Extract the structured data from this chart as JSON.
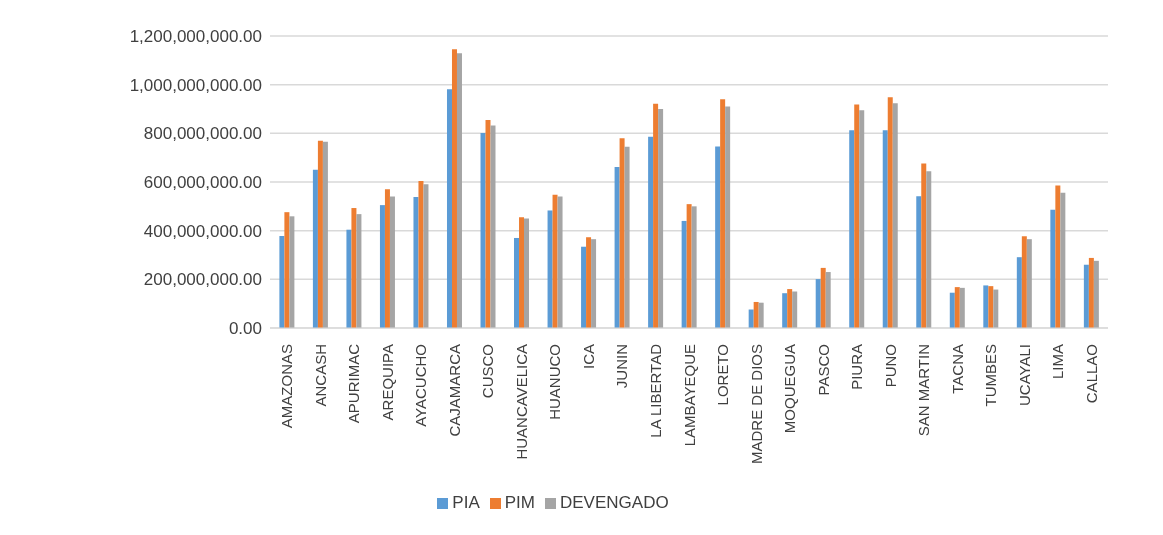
{
  "chart_data": {
    "type": "bar",
    "categories": [
      "AMAZONAS",
      "ANCASH",
      "APURIMAC",
      "AREQUIPA",
      "AYACUCHO",
      "CAJAMARCA",
      "CUSCO",
      "HUANCAVELICA",
      "HUANUCO",
      "ICA",
      "JUNIN",
      "LA LIBERTAD",
      "LAMBAYEQUE",
      "LORETO",
      "MADRE DE DIOS",
      "MOQUEGUA",
      "PASCO",
      "PIURA",
      "PUNO",
      "SAN MARTIN",
      "TACNA",
      "TUMBES",
      "UCAYALI",
      "LIMA",
      "CALLAO"
    ],
    "series": [
      {
        "name": "PIA",
        "color": "#5b9bd5",
        "values": [
          378000000,
          650000000,
          404000000,
          505000000,
          538000000,
          981000000,
          801000000,
          370000000,
          483000000,
          334000000,
          662000000,
          786000000,
          440000000,
          746000000,
          76000000,
          143000000,
          201000000,
          813000000,
          813000000,
          541000000,
          145000000,
          175000000,
          291000000,
          486000000,
          260000000
        ]
      },
      {
        "name": "PIM",
        "color": "#ed7d31",
        "values": [
          476000000,
          770000000,
          493000000,
          570000000,
          604000000,
          1146000000,
          855000000,
          455000000,
          548000000,
          373000000,
          780000000,
          922000000,
          509000000,
          940000000,
          107000000,
          160000000,
          247000000,
          919000000,
          948000000,
          676000000,
          168000000,
          172000000,
          377000000,
          586000000,
          288000000
        ]
      },
      {
        "name": "DEVENGADO",
        "color": "#a5a5a5",
        "values": [
          459000000,
          765000000,
          468000000,
          540000000,
          591000000,
          1129000000,
          832000000,
          450000000,
          540000000,
          365000000,
          745000000,
          900000000,
          500000000,
          910000000,
          104000000,
          150000000,
          230000000,
          895000000,
          924000000,
          644000000,
          165000000,
          158000000,
          365000000,
          556000000,
          276000000
        ]
      }
    ],
    "ylim": [
      0,
      1200000000
    ],
    "yticks": [
      {
        "value": 0,
        "label": "0.00"
      },
      {
        "value": 200000000,
        "label": "200,000,000.00"
      },
      {
        "value": 400000000,
        "label": "400,000,000.00"
      },
      {
        "value": 600000000,
        "label": "600,000,000.00"
      },
      {
        "value": 800000000,
        "label": "800,000,000.00"
      },
      {
        "value": 1000000000,
        "label": "1,000,000,000.00"
      },
      {
        "value": 1200000000,
        "label": "1,200,000,000.00"
      }
    ],
    "grid": "y",
    "legend": "bottom"
  }
}
